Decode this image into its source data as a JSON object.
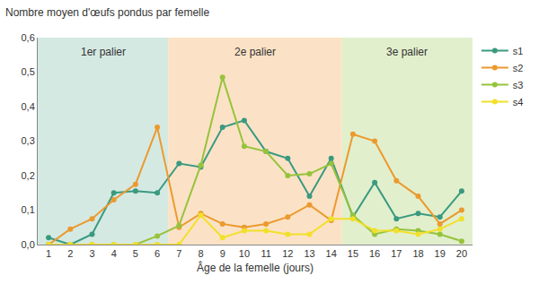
{
  "chart_data": {
    "type": "line",
    "title": "Nombre moyen d'œufs pondus par femelle",
    "x_label": "Âge de la femelle (jours)",
    "x": [
      1,
      2,
      3,
      4,
      5,
      6,
      7,
      8,
      9,
      10,
      11,
      12,
      13,
      14,
      15,
      16,
      17,
      18,
      19,
      20
    ],
    "xlim": [
      0.5,
      20.5
    ],
    "xticks": [
      1,
      2,
      3,
      4,
      5,
      6,
      7,
      8,
      9,
      10,
      11,
      12,
      13,
      14,
      15,
      16,
      17,
      18,
      19,
      20
    ],
    "ylim": [
      0,
      0.6
    ],
    "yticks": [
      {
        "value": 0,
        "label": "0,0"
      },
      {
        "value": 0.1,
        "label": "0,1"
      },
      {
        "value": 0.2,
        "label": "0,2"
      },
      {
        "value": 0.3,
        "label": "0,3"
      },
      {
        "value": 0.4,
        "label": "0,4"
      },
      {
        "value": 0.5,
        "label": "0,5"
      },
      {
        "value": 0.6,
        "label": "0,6"
      }
    ],
    "grid": false,
    "legend": "right",
    "marker": "circle",
    "regions": [
      {
        "label": "1er palier",
        "from": 0.5,
        "to": 6.5,
        "color": "#d5e9e3"
      },
      {
        "label": "2e palier",
        "from": 6.5,
        "to": 14.5,
        "color": "#fbe2c6"
      },
      {
        "label": "3e palier",
        "from": 14.5,
        "to": 20.5,
        "color": "#e2efcd"
      }
    ],
    "series": [
      {
        "name": "s1",
        "color": "#3a9a80",
        "values": [
          0.02,
          0.0,
          0.03,
          0.15,
          0.155,
          0.15,
          0.235,
          0.225,
          0.34,
          0.36,
          0.27,
          0.25,
          0.14,
          0.25,
          0.08,
          0.18,
          0.075,
          0.09,
          0.08,
          0.155
        ]
      },
      {
        "name": "s2",
        "color": "#eb9a2e",
        "values": [
          0.0,
          0.045,
          0.075,
          0.13,
          0.175,
          0.34,
          0.05,
          0.09,
          0.06,
          0.05,
          0.06,
          0.08,
          0.115,
          0.07,
          0.32,
          0.3,
          0.185,
          0.14,
          0.06,
          0.1
        ]
      },
      {
        "name": "s3",
        "color": "#96c33c",
        "values": [
          0.0,
          0.0,
          0.0,
          0.0,
          0.0,
          0.025,
          0.055,
          0.23,
          0.485,
          0.285,
          0.27,
          0.2,
          0.205,
          0.235,
          0.085,
          0.03,
          0.045,
          0.04,
          0.03,
          0.01
        ]
      },
      {
        "name": "s4",
        "color": "#f2e02a",
        "values": [
          0.0,
          0.0,
          0.0,
          0.0,
          0.0,
          0.0,
          0.0,
          0.085,
          0.02,
          0.04,
          0.04,
          0.03,
          0.03,
          0.075,
          0.075,
          0.04,
          0.04,
          0.03,
          0.045,
          0.075
        ]
      }
    ]
  }
}
